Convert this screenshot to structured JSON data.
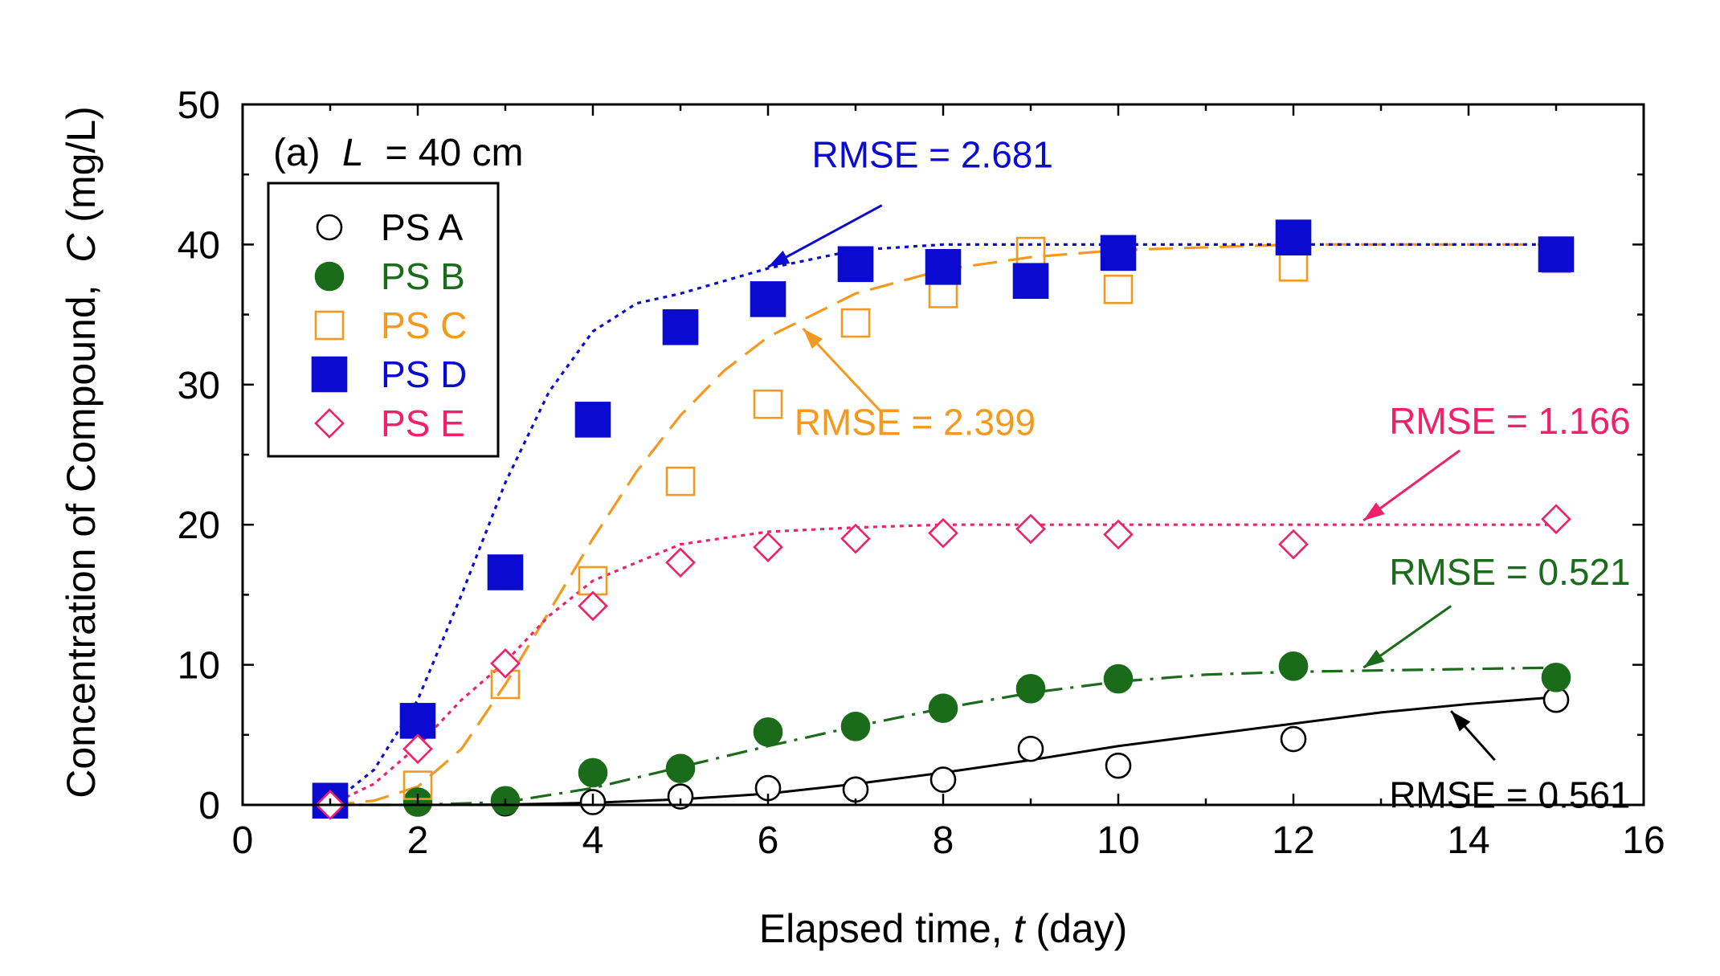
{
  "chart_data": {
    "type": "scatter",
    "panel_label": "(a)",
    "panel_variable": "L",
    "panel_value": " = 40 cm",
    "xlabel": "Elapsed time, ",
    "xlabel_var": "t",
    "xlabel_unit": " (day)",
    "ylabel": "Concentration of Compound,  ",
    "ylabel_var": "C",
    "ylabel_unit": " (mg/L)",
    "xlim": [
      0,
      16
    ],
    "ylim": [
      0,
      50
    ],
    "xticks": [
      0,
      2,
      4,
      6,
      8,
      10,
      12,
      14,
      16
    ],
    "yticks": [
      0,
      10,
      20,
      30,
      40,
      50
    ],
    "legend_position": "top-left",
    "series": [
      {
        "name": "PS A",
        "color": "#000000",
        "marker": "circle-open",
        "line": "solid",
        "x": [
          1,
          2,
          3,
          4,
          5,
          6,
          7,
          8,
          9,
          10,
          12,
          15
        ],
        "y": [
          0.2,
          0.3,
          0.1,
          0.2,
          0.6,
          1.2,
          1.1,
          1.8,
          4.0,
          2.8,
          4.7,
          7.5
        ],
        "fit": {
          "x": [
            1,
            2,
            3,
            4,
            5,
            6,
            7,
            8,
            9,
            10,
            11,
            12,
            13,
            14,
            15
          ],
          "y": [
            0,
            0,
            0.02,
            0.15,
            0.4,
            0.8,
            1.5,
            2.3,
            3.2,
            4.2,
            5.0,
            5.8,
            6.6,
            7.2,
            7.7
          ]
        },
        "rmse": "RMSE = 0.561"
      },
      {
        "name": "PS B",
        "color": "#1a6b1a",
        "marker": "circle-filled",
        "line": "dashdot",
        "x": [
          1,
          2,
          3,
          4,
          5,
          6,
          7,
          8,
          9,
          10,
          12,
          15
        ],
        "y": [
          0.1,
          0.2,
          0.3,
          2.3,
          2.6,
          5.2,
          5.6,
          6.9,
          8.3,
          9.0,
          9.9,
          9.1
        ],
        "fit": {
          "x": [
            1,
            2,
            3,
            4,
            5,
            6,
            7,
            8,
            9,
            10,
            11,
            12,
            13,
            14,
            15
          ],
          "y": [
            0,
            0,
            0.2,
            1.2,
            2.7,
            4.2,
            5.6,
            6.9,
            8.0,
            8.8,
            9.3,
            9.5,
            9.6,
            9.7,
            9.8
          ]
        },
        "rmse": "RMSE = 0.521"
      },
      {
        "name": "PS C",
        "color": "#f39a1e",
        "marker": "square-open",
        "line": "longdash",
        "x": [
          1,
          2,
          3,
          4,
          5,
          6,
          7,
          8,
          9,
          10,
          12,
          15
        ],
        "y": [
          0.2,
          1.4,
          8.6,
          16.0,
          23.1,
          28.6,
          34.4,
          36.5,
          39.5,
          36.8,
          38.4,
          39.0
        ],
        "fit": {
          "x": [
            1,
            1.5,
            2,
            2.5,
            3,
            3.5,
            4,
            4.5,
            5,
            5.5,
            6,
            7,
            8,
            9,
            10,
            12,
            15
          ],
          "y": [
            0,
            0.3,
            1.3,
            4.0,
            8.6,
            13.8,
            19.0,
            23.8,
            27.8,
            31.0,
            33.4,
            36.5,
            38.2,
            39.1,
            39.6,
            40.0,
            40.0
          ]
        },
        "rmse": "RMSE = 2.399"
      },
      {
        "name": "PS D",
        "color": "#0a0ad0",
        "marker": "square-filled",
        "line": "dotted",
        "x": [
          1,
          2,
          3,
          4,
          5,
          6,
          7,
          8,
          9,
          10,
          12,
          15
        ],
        "y": [
          0.3,
          6.0,
          16.6,
          27.5,
          34.1,
          36.1,
          38.6,
          38.4,
          37.4,
          39.4,
          40.5,
          39.3
        ],
        "fit": {
          "x": [
            1,
            1.5,
            2,
            2.5,
            3,
            3.5,
            4,
            4.5,
            5,
            5.5,
            6,
            7,
            8,
            10,
            12,
            15
          ],
          "y": [
            0,
            2.5,
            7.5,
            15.0,
            23.0,
            29.5,
            33.8,
            35.8,
            36.5,
            37.4,
            38.3,
            39.6,
            40.0,
            40.0,
            40.0,
            40.0
          ]
        },
        "rmse": "RMSE = 2.681"
      },
      {
        "name": "PS E",
        "color": "#f0206a",
        "marker": "diamond-open",
        "line": "dotted",
        "x": [
          1,
          2,
          3,
          4,
          5,
          6,
          7,
          8,
          9,
          10,
          12,
          15
        ],
        "y": [
          0.0,
          4.0,
          10.1,
          14.2,
          17.3,
          18.4,
          19.0,
          19.4,
          19.7,
          19.3,
          18.6,
          20.4
        ],
        "fit": {
          "x": [
            1,
            1.5,
            2,
            2.5,
            3,
            3.5,
            4,
            5,
            6,
            7,
            8,
            10,
            12,
            15
          ],
          "y": [
            0,
            1.5,
            4.2,
            7.5,
            10.2,
            13.5,
            16.0,
            18.6,
            19.5,
            19.8,
            20.0,
            20.0,
            20.0,
            20.0
          ]
        },
        "rmse": "RMSE = 1.166"
      }
    ]
  }
}
